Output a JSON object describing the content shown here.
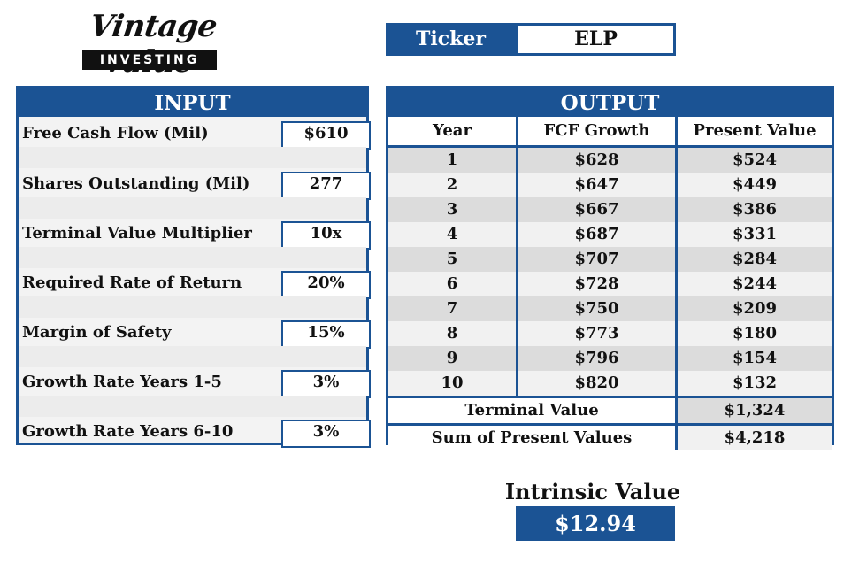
{
  "logo": {
    "script": "Vintage Value",
    "band": "INVESTING"
  },
  "ticker": {
    "label": "Ticker",
    "value": "ELP"
  },
  "input": {
    "title": "INPUT",
    "rows": [
      {
        "label": "Free Cash Flow (Mil)",
        "value": "$610"
      },
      {
        "label": "Shares Outstanding (Mil)",
        "value": "277"
      },
      {
        "label": "Terminal Value Multiplier",
        "value": "10x"
      },
      {
        "label": "Required Rate of Return",
        "value": "20%"
      },
      {
        "label": "Margin of Safety",
        "value": "15%"
      },
      {
        "label": "Growth Rate Years 1-5",
        "value": "3%"
      },
      {
        "label": "Growth Rate Years 6-10",
        "value": "3%"
      }
    ]
  },
  "output": {
    "title": "OUTPUT",
    "headers": [
      "Year",
      "FCF Growth",
      "Present Value"
    ],
    "rows": [
      [
        "1",
        "$628",
        "$524"
      ],
      [
        "2",
        "$647",
        "$449"
      ],
      [
        "3",
        "$667",
        "$386"
      ],
      [
        "4",
        "$687",
        "$331"
      ],
      [
        "5",
        "$707",
        "$284"
      ],
      [
        "6",
        "$728",
        "$244"
      ],
      [
        "7",
        "$750",
        "$209"
      ],
      [
        "8",
        "$773",
        "$180"
      ],
      [
        "9",
        "$796",
        "$154"
      ],
      [
        "10",
        "$820",
        "$132"
      ]
    ],
    "terminal_label": "Terminal Value",
    "terminal_value": "$1,324",
    "sum_label": "Sum of Present Values",
    "sum_value": "$4,218"
  },
  "intrinsic": {
    "label": "Intrinsic Value",
    "value": "$12.94"
  },
  "colors": {
    "accent": "#1b5394",
    "shade": "#dcdcdc",
    "light": "#f1f1f1"
  }
}
